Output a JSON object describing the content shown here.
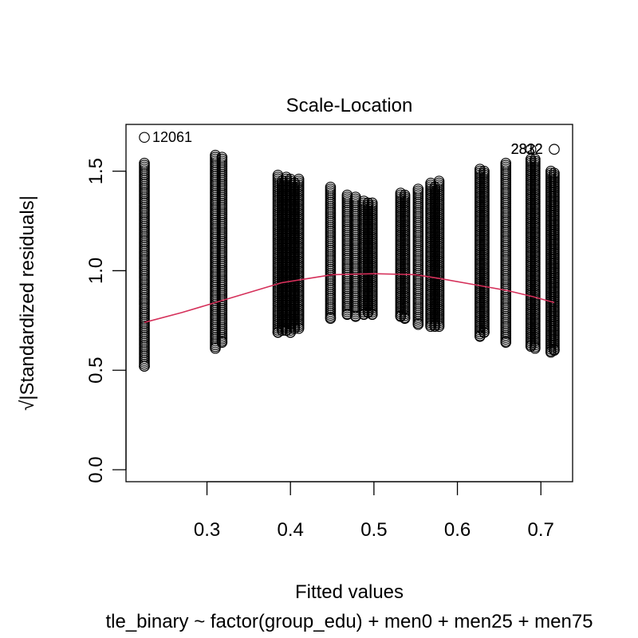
{
  "chart_data": {
    "type": "scatter",
    "title": "Scale-Location",
    "xlabel": "Fitted values",
    "ylabel_radical": "√",
    "ylabel": "|Standardized residuals|",
    "subtitle": "tle_binary ~ factor(group_edu) + men0 + men25 + men75",
    "xlim": [
      0.203,
      0.738
    ],
    "ylim": [
      -0.06,
      1.735
    ],
    "x_ticks": [
      0.3,
      0.4,
      0.5,
      0.6,
      0.7
    ],
    "x_tick_labels": [
      "0.3",
      "0.4",
      "0.5",
      "0.6",
      "0.7"
    ],
    "y_ticks": [
      0.0,
      0.5,
      1.0,
      1.5
    ],
    "y_tick_labels": [
      "0.0",
      "0.5",
      "1.0",
      "1.5"
    ],
    "grid": false,
    "marker": "open-circle",
    "point_color": "#000000",
    "smooth_color": "#d5305a",
    "columns": [
      {
        "x": 0.225,
        "ymin": 0.52,
        "ymax": 1.54
      },
      {
        "x": 0.31,
        "ymin": 0.61,
        "ymax": 1.58
      },
      {
        "x": 0.318,
        "ymin": 0.64,
        "ymax": 1.57
      },
      {
        "x": 0.385,
        "ymin": 0.69,
        "ymax": 1.48
      },
      {
        "x": 0.39,
        "ymin": 0.7,
        "ymax": 1.45
      },
      {
        "x": 0.395,
        "ymin": 0.7,
        "ymax": 1.47
      },
      {
        "x": 0.4,
        "ymin": 0.69,
        "ymax": 1.46
      },
      {
        "x": 0.405,
        "ymin": 0.71,
        "ymax": 1.44
      },
      {
        "x": 0.41,
        "ymin": 0.71,
        "ymax": 1.46
      },
      {
        "x": 0.448,
        "ymin": 0.76,
        "ymax": 1.42
      },
      {
        "x": 0.468,
        "ymin": 0.78,
        "ymax": 1.38
      },
      {
        "x": 0.478,
        "ymin": 0.77,
        "ymax": 1.37
      },
      {
        "x": 0.488,
        "ymin": 0.78,
        "ymax": 1.35
      },
      {
        "x": 0.493,
        "ymin": 0.79,
        "ymax": 1.34
      },
      {
        "x": 0.498,
        "ymin": 0.78,
        "ymax": 1.34
      },
      {
        "x": 0.532,
        "ymin": 0.77,
        "ymax": 1.39
      },
      {
        "x": 0.537,
        "ymin": 0.76,
        "ymax": 1.38
      },
      {
        "x": 0.553,
        "ymin": 0.73,
        "ymax": 1.41
      },
      {
        "x": 0.568,
        "ymin": 0.72,
        "ymax": 1.44
      },
      {
        "x": 0.573,
        "ymin": 0.72,
        "ymax": 1.42
      },
      {
        "x": 0.578,
        "ymin": 0.72,
        "ymax": 1.45
      },
      {
        "x": 0.627,
        "ymin": 0.67,
        "ymax": 1.51
      },
      {
        "x": 0.632,
        "ymin": 0.69,
        "ymax": 1.5
      },
      {
        "x": 0.658,
        "ymin": 0.64,
        "ymax": 1.54
      },
      {
        "x": 0.688,
        "ymin": 0.62,
        "ymax": 1.56
      },
      {
        "x": 0.693,
        "ymin": 0.61,
        "ymax": 1.56
      },
      {
        "x": 0.712,
        "ymin": 0.59,
        "ymax": 1.5
      },
      {
        "x": 0.716,
        "ymin": 0.6,
        "ymax": 1.49
      }
    ],
    "outliers": [
      {
        "x": 0.225,
        "y": 1.67,
        "label": "12061"
      },
      {
        "x": 0.688,
        "y": 1.61,
        "label": ""
      },
      {
        "x": 0.716,
        "y": 1.61,
        "label": ""
      }
    ],
    "overlapping_labels": [
      "2812",
      "2832",
      "2822"
    ],
    "smooth": [
      {
        "x": 0.225,
        "y": 0.74
      },
      {
        "x": 0.27,
        "y": 0.79
      },
      {
        "x": 0.31,
        "y": 0.84
      },
      {
        "x": 0.35,
        "y": 0.89
      },
      {
        "x": 0.39,
        "y": 0.94
      },
      {
        "x": 0.42,
        "y": 0.96
      },
      {
        "x": 0.45,
        "y": 0.98
      },
      {
        "x": 0.5,
        "y": 0.985
      },
      {
        "x": 0.55,
        "y": 0.98
      },
      {
        "x": 0.58,
        "y": 0.96
      },
      {
        "x": 0.62,
        "y": 0.93
      },
      {
        "x": 0.66,
        "y": 0.9
      },
      {
        "x": 0.69,
        "y": 0.87
      },
      {
        "x": 0.716,
        "y": 0.84
      }
    ]
  }
}
